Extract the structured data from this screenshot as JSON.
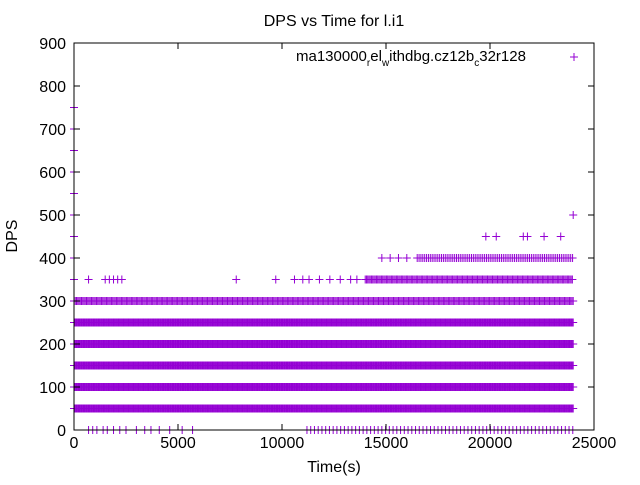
{
  "chart_data": {
    "type": "scatter",
    "title": "DPS vs Time for l.i1",
    "xlabel": "Time(s)",
    "ylabel": "DPS",
    "xlim": [
      0,
      25000
    ],
    "ylim": [
      0,
      900
    ],
    "xticks": [
      0,
      5000,
      10000,
      15000,
      20000,
      25000
    ],
    "yticks": [
      0,
      100,
      200,
      300,
      400,
      500,
      600,
      700,
      800,
      900
    ],
    "grid": false,
    "legend_placement": "top-right",
    "series": [
      {
        "name": "ma130000_rel_withdbg.cz12b_c32r128",
        "legend_parts": [
          "ma130000",
          "r",
          "el",
          "w",
          "ithdbg.cz12b",
          "c",
          "32r128"
        ],
        "color": "#9400d3",
        "marker": "+",
        "dense_bands": [
          {
            "dps": 50,
            "from": 0,
            "to": 24000,
            "step": 40
          },
          {
            "dps": 100,
            "from": 0,
            "to": 24000,
            "step": 40
          },
          {
            "dps": 150,
            "from": 0,
            "to": 24000,
            "step": 40
          },
          {
            "dps": 200,
            "from": 0,
            "to": 24000,
            "step": 40
          },
          {
            "dps": 250,
            "from": 0,
            "to": 24000,
            "step": 40
          },
          {
            "dps": 300,
            "from": 0,
            "to": 24000,
            "step": 60
          },
          {
            "dps": 350,
            "from": 14000,
            "to": 24000,
            "step": 60
          },
          {
            "dps": 400,
            "from": 16500,
            "to": 24000,
            "step": 90
          },
          {
            "dps": 0,
            "from": 11200,
            "to": 24000,
            "step": 180
          }
        ],
        "sparse_points": [
          [
            0,
            750
          ],
          [
            0,
            700
          ],
          [
            0,
            650
          ],
          [
            0,
            600
          ],
          [
            0,
            550
          ],
          [
            0,
            500
          ],
          [
            0,
            450
          ],
          [
            0,
            400
          ],
          [
            0,
            350
          ],
          [
            700,
            0
          ],
          [
            900,
            0
          ],
          [
            1100,
            0
          ],
          [
            1400,
            0
          ],
          [
            1600,
            0
          ],
          [
            1900,
            0
          ],
          [
            2200,
            0
          ],
          [
            2500,
            0
          ],
          [
            3000,
            0
          ],
          [
            3400,
            0
          ],
          [
            3700,
            0
          ],
          [
            4100,
            0
          ],
          [
            4600,
            0
          ],
          [
            5200,
            0
          ],
          [
            5700,
            0
          ],
          [
            700,
            350
          ],
          [
            1500,
            350
          ],
          [
            1700,
            350
          ],
          [
            1900,
            350
          ],
          [
            2100,
            350
          ],
          [
            2300,
            350
          ],
          [
            7800,
            350
          ],
          [
            9700,
            350
          ],
          [
            10600,
            350
          ],
          [
            11000,
            350
          ],
          [
            11300,
            350
          ],
          [
            11800,
            350
          ],
          [
            12300,
            350
          ],
          [
            12800,
            350
          ],
          [
            13300,
            350
          ],
          [
            13600,
            350
          ],
          [
            14800,
            400
          ],
          [
            15200,
            400
          ],
          [
            15600,
            400
          ],
          [
            16000,
            400
          ],
          [
            19800,
            450
          ],
          [
            20300,
            450
          ],
          [
            21600,
            450
          ],
          [
            21800,
            450
          ],
          [
            22600,
            450
          ],
          [
            23400,
            450
          ],
          [
            24000,
            500
          ]
        ]
      }
    ]
  }
}
